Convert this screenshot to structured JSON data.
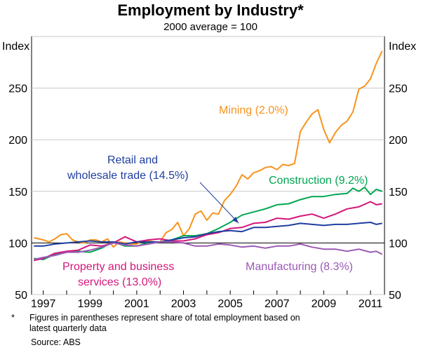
{
  "chart_data": {
    "type": "line",
    "title": "Employment by Industry*",
    "subtitle": "2000 average = 100",
    "ylabel_left": "Index",
    "ylabel_right": "Index",
    "ylim": [
      50,
      300
    ],
    "yticks": [
      50,
      100,
      150,
      200,
      250
    ],
    "xlim": [
      1996.5,
      2011.6
    ],
    "xticks": [
      "1997",
      "1999",
      "2001",
      "2003",
      "2005",
      "2007",
      "2009",
      "2011"
    ],
    "reference_line": 100,
    "series": [
      {
        "name": "Mining (2.0%)",
        "color": "#f7941d",
        "x": [
          1996.6,
          1997.0,
          1997.25,
          1997.5,
          1997.75,
          1998.0,
          1998.25,
          1998.5,
          1998.75,
          1999.0,
          1999.25,
          1999.5,
          1999.75,
          2000.0,
          2000.25,
          2000.5,
          2000.75,
          2001.0,
          2001.25,
          2001.5,
          2001.75,
          2002.0,
          2002.25,
          2002.5,
          2002.75,
          2003.0,
          2003.25,
          2003.5,
          2003.75,
          2004.0,
          2004.25,
          2004.5,
          2004.75,
          2005.0,
          2005.25,
          2005.5,
          2005.75,
          2006.0,
          2006.25,
          2006.5,
          2006.75,
          2007.0,
          2007.25,
          2007.5,
          2007.75,
          2008.0,
          2008.25,
          2008.5,
          2008.75,
          2009.0,
          2009.25,
          2009.5,
          2009.75,
          2010.0,
          2010.25,
          2010.5,
          2010.75,
          2011.0,
          2011.25,
          2011.5
        ],
        "y": [
          105,
          103,
          101,
          104,
          108,
          109,
          103,
          101,
          100,
          103,
          103,
          101,
          104,
          96,
          101,
          100,
          99,
          99,
          102,
          102,
          101,
          101,
          110,
          113,
          120,
          107,
          114,
          128,
          131,
          122,
          129,
          128,
          141,
          147,
          155,
          166,
          162,
          168,
          170,
          173,
          174,
          171,
          176,
          175,
          177,
          208,
          217,
          225,
          229,
          210,
          197,
          207,
          214,
          218,
          227,
          249,
          252,
          259,
          274,
          286
        ]
      },
      {
        "name": "Construction (9.2%)",
        "color": "#00a651",
        "x": [
          1996.6,
          1997.0,
          1997.5,
          1998.0,
          1998.5,
          1999.0,
          1999.5,
          2000.0,
          2000.5,
          2001.0,
          2001.5,
          2002.0,
          2002.5,
          2003.0,
          2003.5,
          2004.0,
          2004.5,
          2005.0,
          2005.5,
          2006.0,
          2006.5,
          2007.0,
          2007.5,
          2008.0,
          2008.5,
          2009.0,
          2009.5,
          2010.0,
          2010.25,
          2010.5,
          2010.75,
          2011.0,
          2011.25,
          2011.5
        ],
        "y": [
          85,
          84,
          89,
          91,
          92,
          91,
          95,
          101,
          97,
          97,
          100,
          101,
          103,
          107,
          107,
          109,
          114,
          120,
          127,
          130,
          133,
          137,
          138,
          142,
          145,
          145,
          147,
          148,
          153,
          150,
          154,
          147,
          152,
          150
        ]
      },
      {
        "name": "Property and business services (13.0%)",
        "color": "#d4167b",
        "x": [
          1996.6,
          1997.0,
          1997.5,
          1998.0,
          1998.5,
          1999.0,
          1999.5,
          2000.0,
          2000.5,
          2001.0,
          2001.5,
          2002.0,
          2002.5,
          2003.0,
          2003.5,
          2004.0,
          2004.5,
          2005.0,
          2005.5,
          2006.0,
          2006.5,
          2007.0,
          2007.5,
          2008.0,
          2008.5,
          2009.0,
          2009.5,
          2010.0,
          2010.5,
          2011.0,
          2011.25,
          2011.5
        ],
        "y": [
          83,
          85,
          90,
          92,
          93,
          98,
          97,
          100,
          106,
          101,
          103,
          104,
          102,
          102,
          104,
          108,
          110,
          114,
          115,
          119,
          120,
          124,
          123,
          126,
          128,
          124,
          128,
          133,
          135,
          140,
          137,
          138
        ]
      },
      {
        "name": "Retail and wholesale trade (14.5%)",
        "color": "#1f3fa0",
        "x": [
          1996.6,
          1997.0,
          1997.5,
          1998.0,
          1998.5,
          1999.0,
          1999.5,
          2000.0,
          2000.5,
          2001.0,
          2001.5,
          2002.0,
          2002.5,
          2003.0,
          2003.5,
          2004.0,
          2004.5,
          2005.0,
          2005.5,
          2006.0,
          2006.5,
          2007.0,
          2007.5,
          2008.0,
          2008.5,
          2009.0,
          2009.5,
          2010.0,
          2010.5,
          2011.0,
          2011.25,
          2011.5
        ],
        "y": [
          97,
          97,
          99,
          100,
          101,
          102,
          101,
          101,
          99,
          101,
          101,
          101,
          103,
          105,
          106,
          109,
          111,
          112,
          111,
          115,
          115,
          116,
          117,
          119,
          118,
          117,
          118,
          118,
          119,
          120,
          118,
          119
        ]
      },
      {
        "name": "Manufacturing (8.3%)",
        "color": "#9b59b6",
        "x": [
          1996.6,
          1997.0,
          1997.5,
          1998.0,
          1998.5,
          1999.0,
          1999.5,
          2000.0,
          2000.5,
          2001.0,
          2001.5,
          2002.0,
          2002.5,
          2003.0,
          2003.5,
          2004.0,
          2004.5,
          2005.0,
          2005.5,
          2006.0,
          2006.5,
          2007.0,
          2007.5,
          2008.0,
          2008.5,
          2009.0,
          2009.5,
          2010.0,
          2010.5,
          2011.0,
          2011.25,
          2011.5
        ],
        "y": [
          84,
          86,
          88,
          91,
          91,
          93,
          96,
          100,
          98,
          97,
          99,
          101,
          101,
          100,
          97,
          97,
          99,
          98,
          96,
          97,
          95,
          97,
          97,
          99,
          96,
          94,
          94,
          92,
          94,
          91,
          92,
          89
        ]
      }
    ],
    "annotations": {
      "mining": "Mining (2.0%)",
      "retail_line1": "Retail and",
      "retail_line2": "wholesale trade (14.5%)",
      "construction": "Construction (9.2%)",
      "property_line1": "Property and business",
      "property_line2": "services (13.0%)",
      "manufacturing": "Manufacturing (8.3%)"
    }
  },
  "footnote": {
    "mark": "*",
    "line1": "Figures in parentheses represent share of total employment based on",
    "line2": "latest quarterly data"
  },
  "source": "Source: ABS"
}
